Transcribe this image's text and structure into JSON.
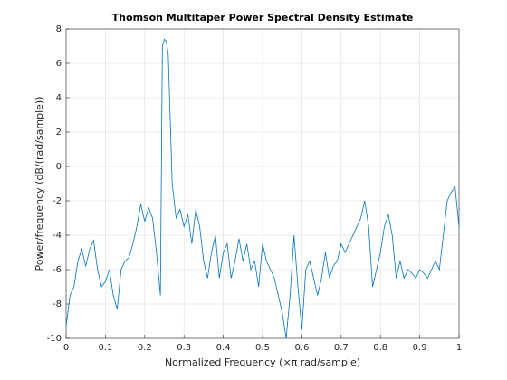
{
  "chart_data": {
    "type": "line",
    "title": "Thomson Multitaper Power Spectral Density Estimate",
    "xlabel": "Normalized Frequency  (×π rad/sample)",
    "ylabel": "Power/frequency (dB/(rad/sample))",
    "color": "#0072bd",
    "grid": true,
    "xlim": [
      0,
      1
    ],
    "ylim": [
      -10,
      8
    ],
    "xticks": [
      0,
      0.1,
      0.2,
      0.3,
      0.4,
      0.5,
      0.6,
      0.7,
      0.8,
      0.9,
      1
    ],
    "yticks": [
      -10,
      -8,
      -6,
      -4,
      -2,
      0,
      2,
      4,
      6,
      8
    ],
    "x": [
      0,
      0.01,
      0.02,
      0.03,
      0.04,
      0.05,
      0.06,
      0.07,
      0.08,
      0.09,
      0.1,
      0.11,
      0.12,
      0.13,
      0.14,
      0.15,
      0.16,
      0.17,
      0.18,
      0.19,
      0.2,
      0.21,
      0.22,
      0.23,
      0.24,
      0.245,
      0.25,
      0.255,
      0.26,
      0.27,
      0.28,
      0.29,
      0.3,
      0.31,
      0.32,
      0.33,
      0.34,
      0.35,
      0.36,
      0.37,
      0.38,
      0.39,
      0.4,
      0.41,
      0.42,
      0.43,
      0.44,
      0.45,
      0.46,
      0.47,
      0.48,
      0.49,
      0.5,
      0.51,
      0.52,
      0.53,
      0.54,
      0.55,
      0.56,
      0.57,
      0.58,
      0.59,
      0.6,
      0.61,
      0.62,
      0.63,
      0.64,
      0.65,
      0.66,
      0.67,
      0.68,
      0.69,
      0.7,
      0.71,
      0.72,
      0.73,
      0.74,
      0.75,
      0.76,
      0.77,
      0.78,
      0.79,
      0.8,
      0.81,
      0.82,
      0.83,
      0.84,
      0.85,
      0.86,
      0.87,
      0.88,
      0.89,
      0.9,
      0.91,
      0.92,
      0.93,
      0.94,
      0.95,
      0.96,
      0.97,
      0.98,
      0.99,
      1
    ],
    "values": [
      -9.3,
      -7.5,
      -7,
      -5.5,
      -4.8,
      -5.8,
      -4.8,
      -4.3,
      -6,
      -7,
      -6.7,
      -6,
      -7.5,
      -8.3,
      -6,
      -5.5,
      -5.3,
      -4.5,
      -3.5,
      -2.2,
      -3.2,
      -2.4,
      -3,
      -5,
      -7.5,
      7,
      7.4,
      7.3,
      6.5,
      -1,
      -3,
      -2.5,
      -3.5,
      -2.8,
      -4.5,
      -2.5,
      -3.5,
      -5.5,
      -6.5,
      -5,
      -4,
      -6.5,
      -5,
      -4.5,
      -6.5,
      -5.5,
      -4.2,
      -5.5,
      -4.5,
      -6,
      -5.5,
      -7,
      -4.5,
      -5.5,
      -6,
      -6.5,
      -7.5,
      -8.5,
      -10,
      -7.5,
      -4,
      -7,
      -9.5,
      -6,
      -5.5,
      -6.5,
      -7.5,
      -6.5,
      -5,
      -6.5,
      -5.8,
      -5.5,
      -4.5,
      -5,
      -4.5,
      -4,
      -3.5,
      -3,
      -2,
      -3.5,
      -7,
      -6,
      -5,
      -3.5,
      -2.8,
      -4,
      -6.5,
      -5.5,
      -6.5,
      -6,
      -6.2,
      -6.5,
      -6,
      -6.2,
      -6.5,
      -6,
      -5.5,
      -6,
      -4,
      -2,
      -1.5,
      -1.2,
      -3.5
    ]
  }
}
